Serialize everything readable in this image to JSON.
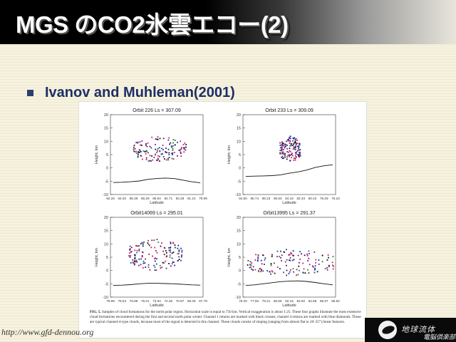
{
  "slide": {
    "title": "MGS のCO2氷雲エコー(2)",
    "bullet": "Ivanov and Muhleman(2001)",
    "footer_url": "http://www.gfd-dennou.org",
    "logo_line1": "地球流体",
    "logo_line2": "電脳倶楽部"
  },
  "figure": {
    "caption_label": "FIG. 5.",
    "caption": "Samples of cloud formations for the north polar region. Horizontal scale is equal to 750 km. Vertical exaggeration is about 1:25. These four graphs illustrate the most extensive cloud formations encountered during the first and second north polar winter. Channel 1 returns are marked with black crosses; channel 4 returns are marked with blue diamonds. Those are typical channel-4-type clouds, because most of the signal is detected in this channel. These clouds consist of sloping (ranging from almost flat to 20–25°) linear features.",
    "ylabel": "Height, km",
    "xlabel": "Latitude",
    "yticks": [
      "20",
      "15",
      "10",
      "5",
      "0",
      "-5",
      "-10"
    ]
  },
  "chart_data": [
    {
      "type": "scatter",
      "title": "Orbit  226 Ls = 307.09",
      "xlabel": "Latitude",
      "ylabel": "Height, km",
      "ylim": [
        -10,
        20
      ],
      "x_ticks": [
        "82.26",
        "84.02",
        "85.39",
        "86.29",
        "85.94",
        "84.71",
        "83.28",
        "81.10",
        "78.99"
      ],
      "surface": [
        -5.5,
        -5.4,
        -5.2,
        -4.9,
        -4.3,
        -4.0,
        -3.8,
        -4.0,
        -4.6,
        -5.2,
        -5.6
      ],
      "cloud": {
        "x_range": [
          0.25,
          0.82
        ],
        "y_center": 7,
        "y_spread": 5
      }
    },
    {
      "type": "scatter",
      "title": "Orbit  233 Ls = 309.09",
      "xlabel": "Latitude",
      "ylabel": "Height, km",
      "ylim": [
        -10,
        20
      ],
      "x_ticks": [
        "84.50",
        "85.74",
        "86.23",
        "85.63",
        "84.18",
        "82.33",
        "80.42",
        "78.29",
        "76.23"
      ],
      "surface": [
        -3.2,
        -3.1,
        -3.0,
        -2.9,
        -2.6,
        -2.0,
        -1.5,
        -0.8,
        0.2,
        0.8,
        1.2
      ],
      "cloud": {
        "x_range": [
          0.4,
          0.62
        ],
        "y_center": 7,
        "y_spread": 5
      }
    },
    {
      "type": "scatter",
      "title": "Orbit14069 Ls = 295.01",
      "xlabel": "Latitude",
      "ylabel": "Height, km",
      "ylim": [
        -10,
        20
      ],
      "x_ticks": [
        "79.99",
        "78.54",
        "76.98",
        "75.01",
        "73.94",
        "72.36",
        "70.87",
        "69.28",
        "67.79"
      ],
      "surface": [
        -5.6,
        -5.5,
        -5.3,
        -5.0,
        -4.8,
        -4.8,
        -4.9,
        -5.0,
        -5.2,
        -5.4,
        -5.5
      ],
      "cloud": {
        "x_range": [
          0.2,
          0.78
        ],
        "y_center": 6,
        "y_spread": 6
      }
    },
    {
      "type": "scatter",
      "title": "Orbit13995 Ls = 291.37",
      "xlabel": "Latitude",
      "ylabel": "Height, km",
      "ylim": [
        -10,
        20
      ],
      "x_ticks": [
        "76.20",
        "77.66",
        "79.21",
        "80.65",
        "82.15",
        "83.60",
        "84.88",
        "86.97",
        "86.82"
      ],
      "surface": [
        -5.6,
        -5.4,
        -5.0,
        -4.6,
        -4.2,
        -4.0,
        -3.9,
        -4.1,
        -4.5,
        -5.0,
        -5.4
      ],
      "cloud": {
        "x_range": [
          0.05,
          0.98
        ],
        "y_center": 3,
        "y_spread": 5
      }
    }
  ]
}
